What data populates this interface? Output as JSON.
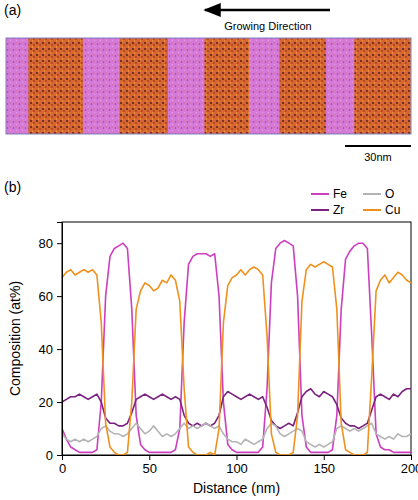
{
  "panel_a": {
    "label": "(a)",
    "arrow_text": "Growing Direction",
    "scale_bar_label": "30nm"
  },
  "chart_data": {
    "type": "line",
    "annotations": [
      "(b)"
    ],
    "x_label": "Distance (nm)",
    "y_label": "Composition (at%)",
    "xlim": [
      0,
      200
    ],
    "xticks": [
      0,
      50,
      100,
      150,
      200
    ],
    "ylim": [
      0,
      88
    ],
    "yticks": [
      0,
      20,
      40,
      60,
      80
    ],
    "grid": false,
    "legend": "upper right",
    "x": [
      0,
      2.5,
      5,
      7.5,
      10,
      12.5,
      15,
      17.5,
      20,
      22.5,
      25,
      27.5,
      30,
      32.5,
      35,
      37.5,
      40,
      42.5,
      45,
      47.5,
      50,
      52.5,
      55,
      57.5,
      60,
      62.5,
      65,
      67.5,
      70,
      72.5,
      75,
      77.5,
      80,
      82.5,
      85,
      87.5,
      90,
      92.5,
      95,
      97.5,
      100,
      102.5,
      105,
      107.5,
      110,
      112.5,
      115,
      117.5,
      120,
      122.5,
      125,
      127.5,
      130,
      132.5,
      135,
      137.5,
      140,
      142.5,
      145,
      147.5,
      150,
      152.5,
      155,
      157.5,
      160,
      162.5,
      165,
      167.5,
      170,
      172.5,
      175,
      177.5,
      180,
      182.5,
      185,
      187.5,
      190,
      192.5,
      195,
      197.5,
      200
    ],
    "series": [
      {
        "name": "Fe",
        "color": "#cc3fbf",
        "values": [
          10,
          6,
          3,
          2,
          1,
          1,
          1,
          1,
          2,
          20,
          60,
          75,
          78,
          79,
          80,
          78,
          55,
          15,
          4,
          2,
          1,
          1,
          1,
          1,
          1,
          1,
          2,
          10,
          50,
          72,
          75,
          76,
          76,
          76,
          75,
          76,
          60,
          20,
          4,
          2,
          1,
          1,
          1,
          1,
          1,
          1,
          3,
          25,
          65,
          78,
          80,
          81,
          80,
          79,
          60,
          15,
          3,
          1,
          1,
          1,
          1,
          1,
          2,
          15,
          55,
          74,
          77,
          79,
          80,
          80,
          78,
          45,
          8,
          3,
          2,
          2,
          1,
          1,
          1,
          1,
          1
        ]
      },
      {
        "name": "Zr",
        "color": "#7b2180",
        "values": [
          20,
          21,
          22,
          22,
          23,
          22,
          21,
          22,
          23,
          20,
          14,
          12,
          12,
          11,
          11,
          12,
          16,
          21,
          22,
          23,
          22,
          21,
          22,
          23,
          22,
          21,
          22,
          21,
          15,
          12,
          11,
          12,
          11,
          12,
          11,
          12,
          15,
          22,
          24,
          23,
          22,
          21,
          22,
          23,
          22,
          21,
          22,
          18,
          13,
          11,
          10,
          11,
          12,
          11,
          16,
          22,
          24,
          25,
          23,
          22,
          24,
          23,
          22,
          19,
          14,
          12,
          11,
          11,
          10,
          11,
          12,
          17,
          22,
          23,
          22,
          21,
          23,
          22,
          24,
          25,
          25
        ]
      },
      {
        "name": "O",
        "color": "#b4b4b4",
        "values": [
          8,
          6,
          5,
          6,
          5,
          6,
          5,
          6,
          7,
          10,
          11,
          9,
          8,
          8,
          7,
          8,
          10,
          12,
          10,
          8,
          9,
          11,
          9,
          7,
          8,
          7,
          8,
          10,
          12,
          10,
          11,
          10,
          11,
          12,
          11,
          10,
          11,
          8,
          6,
          5,
          5,
          4,
          6,
          5,
          4,
          5,
          6,
          10,
          12,
          11,
          8,
          7,
          8,
          9,
          10,
          9,
          5,
          4,
          3,
          4,
          3,
          4,
          5,
          10,
          11,
          10,
          9,
          10,
          9,
          10,
          11,
          12,
          8,
          7,
          6,
          7,
          6,
          8,
          7,
          7,
          8
        ]
      },
      {
        "name": "Cu",
        "color": "#f0911e",
        "values": [
          67,
          69,
          70,
          68,
          69,
          70,
          69,
          70,
          68,
          50,
          12,
          3,
          1,
          0,
          0,
          1,
          20,
          55,
          62,
          65,
          64,
          62,
          63,
          66,
          65,
          68,
          66,
          58,
          25,
          3,
          1,
          0,
          0,
          0,
          1,
          0,
          10,
          50,
          64,
          67,
          68,
          70,
          68,
          70,
          71,
          70,
          68,
          45,
          8,
          1,
          0,
          0,
          0,
          1,
          15,
          58,
          70,
          72,
          71,
          72,
          73,
          72,
          71,
          55,
          12,
          2,
          1,
          0,
          0,
          0,
          1,
          30,
          62,
          66,
          68,
          65,
          67,
          69,
          68,
          66,
          65
        ]
      }
    ]
  }
}
